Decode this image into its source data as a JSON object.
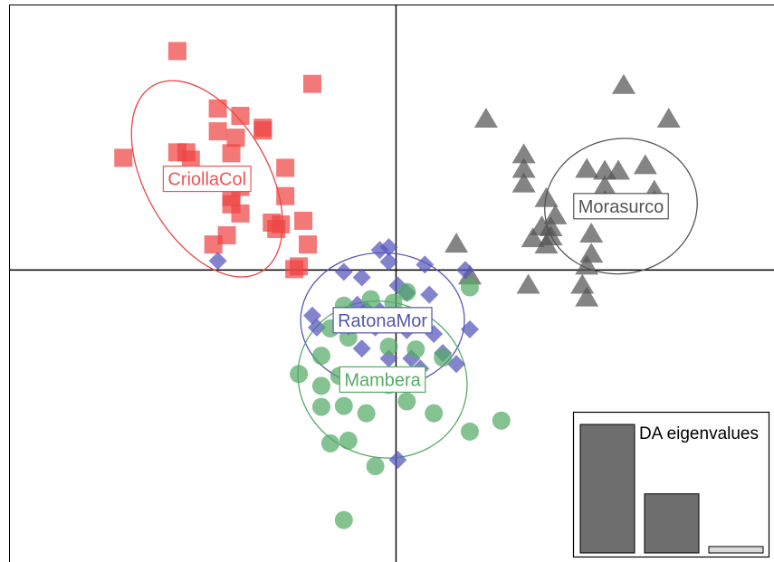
{
  "chart_data": {
    "type": "scatter",
    "title": "",
    "xlabel": "",
    "ylabel": "",
    "xlim": [
      -4.3,
      4.2
    ],
    "ylim": [
      -3.2,
      2.9
    ],
    "axes_at_origin": true,
    "groups": [
      {
        "name": "CriollaCol",
        "marker": "square",
        "color": "#ee4444",
        "label_color": "#ee5555",
        "centroid": [
          -2.1,
          1.0
        ],
        "ellipse": {
          "rx": 0.68,
          "ry": 1.18,
          "angle_deg": -30
        },
        "points": [
          [
            -2.43,
            2.4
          ],
          [
            -0.93,
            2.04
          ],
          [
            -3.03,
            1.23
          ],
          [
            -2.43,
            1.29
          ],
          [
            -1.98,
            1.52
          ],
          [
            -1.83,
            1.28
          ],
          [
            -1.48,
            1.53
          ],
          [
            -1.73,
            1.69
          ],
          [
            -1.98,
            1.77
          ],
          [
            -1.78,
            1.45
          ],
          [
            -1.48,
            1.56
          ],
          [
            -2.33,
            1.29
          ],
          [
            -2.28,
            1.21
          ],
          [
            -1.93,
            1.02
          ],
          [
            -1.73,
            0.91
          ],
          [
            -1.23,
            1.12
          ],
          [
            -1.83,
            0.8
          ],
          [
            -1.73,
            0.62
          ],
          [
            -1.38,
            0.52
          ],
          [
            -1.28,
            0.5
          ],
          [
            -1.03,
            0.54
          ],
          [
            -0.98,
            0.28
          ],
          [
            -1.88,
            0.38
          ],
          [
            -2.03,
            0.28
          ],
          [
            -1.33,
            0.45
          ],
          [
            -1.13,
            0.01
          ],
          [
            -1.08,
            0.04
          ],
          [
            -1.83,
            0.72
          ],
          [
            -1.23,
            0.81
          ]
        ]
      },
      {
        "name": "Morasurco",
        "marker": "triangle",
        "color": "#555555",
        "label_color": "#555555",
        "centroid": [
          2.5,
          0.7
        ],
        "ellipse": {
          "rx": 0.85,
          "ry": 0.74,
          "angle_deg": -10
        },
        "points": [
          [
            1.0,
            1.66
          ],
          [
            2.53,
            2.03
          ],
          [
            3.03,
            1.66
          ],
          [
            1.42,
            1.27
          ],
          [
            1.42,
            1.11
          ],
          [
            1.42,
            0.95
          ],
          [
            2.12,
            1.11
          ],
          [
            2.32,
            1.09
          ],
          [
            2.47,
            1.09
          ],
          [
            2.77,
            1.15
          ],
          [
            2.87,
            0.87
          ],
          [
            2.32,
            0.92
          ],
          [
            2.87,
            0.76
          ],
          [
            1.67,
            0.79
          ],
          [
            1.62,
            0.48
          ],
          [
            1.72,
            0.47
          ],
          [
            1.72,
            0.37
          ],
          [
            2.17,
            0.4
          ],
          [
            1.67,
            0.28
          ],
          [
            1.52,
            0.35
          ],
          [
            2.17,
            0.18
          ],
          [
            2.12,
            0.05
          ],
          [
            0.67,
            0.29
          ],
          [
            1.47,
            -0.16
          ],
          [
            2.07,
            -0.16
          ],
          [
            2.12,
            -0.3
          ],
          [
            0.82,
            -0.06
          ],
          [
            2.32,
            0.76
          ],
          [
            1.77,
            0.6
          ]
        ]
      },
      {
        "name": "RatonaMor",
        "marker": "diamond",
        "color": "#5555bb",
        "label_color": "#5555aa",
        "centroid": [
          -0.15,
          -0.55
        ],
        "ellipse": {
          "rx": 0.91,
          "ry": 0.74,
          "angle_deg": 0
        },
        "points": [
          [
            -1.98,
            0.1
          ],
          [
            -0.58,
            -0.02
          ],
          [
            -0.38,
            -0.08
          ],
          [
            -0.18,
            0.22
          ],
          [
            -0.08,
            0.25
          ],
          [
            -0.08,
            0.09
          ],
          [
            0.32,
            0.06
          ],
          [
            0.77,
            0.0
          ],
          [
            0.02,
            -0.17
          ],
          [
            0.12,
            -0.25
          ],
          [
            0.37,
            -0.27
          ],
          [
            -0.43,
            -0.38
          ],
          [
            -0.33,
            -0.44
          ],
          [
            -0.18,
            -0.45
          ],
          [
            -0.93,
            -0.5
          ],
          [
            -0.88,
            -0.63
          ],
          [
            -0.53,
            -0.62
          ],
          [
            -0.23,
            -0.63
          ],
          [
            0.12,
            -0.66
          ],
          [
            0.42,
            -0.7
          ],
          [
            0.82,
            -0.65
          ],
          [
            -0.38,
            -0.86
          ],
          [
            -0.08,
            -0.97
          ],
          [
            0.17,
            -0.97
          ],
          [
            0.52,
            -0.91
          ],
          [
            0.67,
            -1.03
          ],
          [
            0.27,
            -1.08
          ],
          [
            0.02,
            -2.08
          ]
        ]
      },
      {
        "name": "Mambera",
        "marker": "circle",
        "color": "#55aa66",
        "label_color": "#55aa66",
        "centroid": [
          -0.15,
          -1.2
        ],
        "ellipse": {
          "rx": 0.95,
          "ry": 0.85,
          "angle_deg": 20
        },
        "points": [
          [
            0.82,
            -0.19
          ],
          [
            0.12,
            -0.24
          ],
          [
            -0.03,
            -0.36
          ],
          [
            -0.28,
            -0.32
          ],
          [
            -0.58,
            -0.39
          ],
          [
            -0.48,
            -0.6
          ],
          [
            -0.13,
            -0.57
          ],
          [
            -0.73,
            -0.64
          ],
          [
            -0.53,
            -0.74
          ],
          [
            -0.83,
            -0.94
          ],
          [
            -0.08,
            -0.84
          ],
          [
            0.22,
            -0.87
          ],
          [
            0.52,
            -0.96
          ],
          [
            -1.08,
            -1.14
          ],
          [
            -0.83,
            -1.27
          ],
          [
            -0.63,
            -1.16
          ],
          [
            -0.33,
            -1.22
          ],
          [
            -0.08,
            -1.26
          ],
          [
            0.12,
            -1.44
          ],
          [
            -0.83,
            -1.5
          ],
          [
            -0.58,
            -1.49
          ],
          [
            -0.33,
            -1.57
          ],
          [
            0.42,
            -1.57
          ],
          [
            -0.73,
            -1.9
          ],
          [
            -0.53,
            -1.87
          ],
          [
            -0.23,
            -2.15
          ],
          [
            0.82,
            -1.77
          ],
          [
            1.17,
            -1.65
          ],
          [
            -0.58,
            -2.74
          ],
          [
            0.12,
            -0.58
          ]
        ]
      }
    ],
    "inset": {
      "title": "DA eigenvalues",
      "type": "bar",
      "values": [
        1.0,
        0.46,
        0.05
      ],
      "bar_colors": [
        "#6e6e6e",
        "#6e6e6e",
        "#d9d9d9"
      ]
    }
  }
}
